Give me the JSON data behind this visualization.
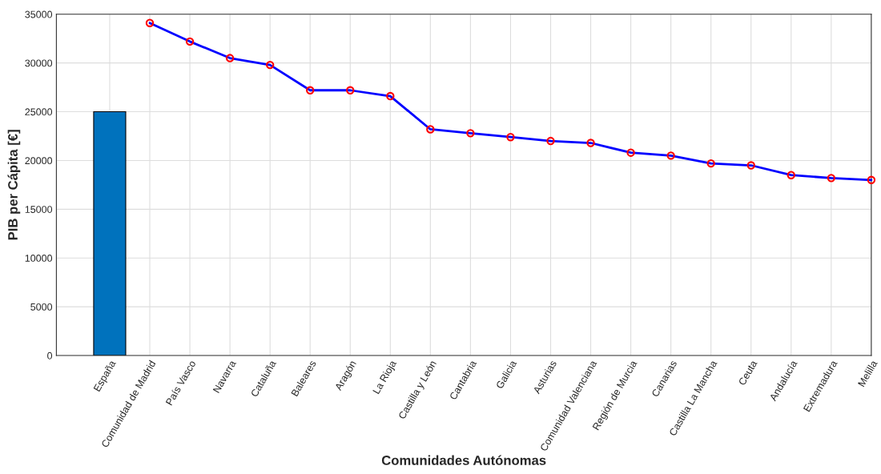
{
  "chart_data": {
    "type": "bar",
    "xlabel": "Comunidades Autónomas",
    "ylabel": "PIB per Cápita [€]",
    "categories": [
      "España",
      "Comunidad de Madrid",
      "País Vasco",
      "Navarra",
      "Cataluña",
      "Baleares",
      "Aragón",
      "La Rioja",
      "Castilla y León",
      "Cantabria",
      "Galicia",
      "Asturias",
      "Comunidad Valenciana",
      "Región de Murcia",
      "Canarias",
      "Castilla La Mancha",
      "Ceuta",
      "Andalucía",
      "Extremadura",
      "Melilla"
    ],
    "series": [
      {
        "color": "#0072bd",
        "values": [
          25000,
          null,
          null,
          null,
          null,
          null,
          null,
          null,
          null,
          null,
          null,
          null,
          null,
          null,
          null,
          null,
          null,
          null,
          null,
          null
        ]
      },
      {
        "type": "line",
        "color": "#0000ff",
        "marker": "circle",
        "line_style": "solid",
        "values": [
          null,
          34100,
          32200,
          30500,
          29800,
          27200,
          27200,
          26600,
          23200,
          22800,
          22400,
          22000,
          21800,
          20800,
          20500,
          19700,
          19500,
          18500,
          18200,
          18000
        ]
      }
    ],
    "ylim": [
      0,
      35000
    ],
    "yticks": [
      0,
      5000,
      10000,
      15000,
      20000,
      25000,
      30000,
      35000
    ],
    "grid": true,
    "legend": false
  }
}
